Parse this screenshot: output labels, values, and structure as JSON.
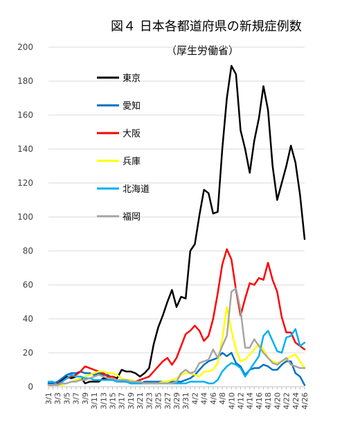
{
  "chart_data": {
    "type": "line",
    "title": "図４ 日本各都道府県の新規症例数",
    "subtitle": "（厚生労働省）",
    "xlabel": "",
    "ylabel": "",
    "ylim": [
      0,
      200
    ],
    "yticks": [
      0,
      20,
      40,
      60,
      80,
      100,
      120,
      140,
      160,
      180,
      200
    ],
    "grid": true,
    "legend_position": "left",
    "x": [
      "3/1",
      "3/2",
      "3/3",
      "3/4",
      "3/5",
      "3/6",
      "3/7",
      "3/8",
      "3/9",
      "3/10",
      "3/11",
      "3/12",
      "3/13",
      "3/14",
      "3/15",
      "3/16",
      "3/17",
      "3/18",
      "3/19",
      "3/20",
      "3/21",
      "3/22",
      "3/23",
      "3/24",
      "3/25",
      "3/26",
      "3/27",
      "3/28",
      "3/29",
      "3/30",
      "3/31",
      "4/1",
      "4/2",
      "4/3",
      "4/4",
      "4/5",
      "4/6",
      "4/7",
      "4/8",
      "4/9",
      "4/10",
      "4/11",
      "4/12",
      "4/13",
      "4/14",
      "4/15",
      "4/16",
      "4/17",
      "4/18",
      "4/19",
      "4/20",
      "4/21",
      "4/22",
      "4/23",
      "4/24",
      "4/25",
      "4/26"
    ],
    "xtick_labels": [
      "3/1",
      "3/3",
      "3/5",
      "3/7",
      "3/9",
      "3/11",
      "3/13",
      "3/15",
      "3/17",
      "3/19",
      "3/21",
      "3/23",
      "3/25",
      "3/27",
      "3/29",
      "3/31",
      "4/2",
      "4/4",
      "4/6",
      "4/8",
      "4/10",
      "4/12",
      "4/14",
      "4/16",
      "4/18",
      "4/20",
      "4/22",
      "4/24",
      "4/26"
    ],
    "series": [
      {
        "name": "東京",
        "color": "#000000",
        "values": [
          1,
          1,
          2,
          4,
          6,
          5,
          6,
          6,
          2,
          3,
          3,
          3,
          5,
          5,
          6,
          5,
          10,
          9,
          9,
          8,
          6,
          8,
          11,
          25,
          35,
          42,
          50,
          57,
          47,
          53,
          52,
          80,
          84,
          101,
          116,
          114,
          102,
          103,
          140,
          170,
          189,
          184,
          151,
          140,
          126,
          145,
          158,
          177,
          163,
          130,
          110,
          120,
          130,
          142,
          132,
          113,
          87
        ]
      },
      {
        "name": "愛知",
        "color": "#0070c0",
        "values": [
          2,
          2,
          3,
          5,
          7,
          8,
          8,
          9,
          8,
          8,
          7,
          8,
          7,
          7,
          5,
          4,
          3,
          3,
          2,
          2,
          2,
          3,
          3,
          3,
          3,
          3,
          3,
          3,
          3,
          3,
          4,
          5,
          7,
          10,
          13,
          15,
          16,
          17,
          20,
          18,
          20,
          14,
          12,
          7,
          10,
          11,
          11,
          13,
          12,
          10,
          10,
          13,
          15,
          15,
          8,
          6,
          1
        ]
      },
      {
        "name": "大阪",
        "color": "#ff0000",
        "values": [
          1,
          1,
          2,
          3,
          5,
          6,
          7,
          9,
          12,
          11,
          10,
          9,
          8,
          6,
          6,
          4,
          4,
          3,
          3,
          3,
          4,
          5,
          6,
          9,
          12,
          15,
          17,
          13,
          17,
          24,
          31,
          33,
          36,
          33,
          27,
          30,
          40,
          55,
          72,
          81,
          75,
          57,
          42,
          52,
          61,
          60,
          64,
          63,
          73,
          63,
          56,
          41,
          32,
          32,
          26,
          24,
          22
        ]
      },
      {
        "name": "兵庫",
        "color": "#ffff00",
        "values": [
          1,
          1,
          1,
          1,
          2,
          3,
          4,
          5,
          6,
          7,
          8,
          9,
          9,
          8,
          8,
          7,
          5,
          4,
          4,
          3,
          3,
          2,
          2,
          2,
          2,
          3,
          3,
          4,
          5,
          7,
          8,
          8,
          7,
          6,
          9,
          9,
          10,
          14,
          28,
          47,
          33,
          22,
          15,
          16,
          19,
          22,
          25,
          22,
          17,
          15,
          14,
          15,
          16,
          18,
          19,
          15,
          11
        ]
      },
      {
        "name": "北海道",
        "color": "#00b0f0",
        "values": [
          3,
          3,
          1,
          3,
          5,
          7,
          6,
          6,
          5,
          5,
          4,
          4,
          4,
          4,
          4,
          3,
          3,
          3,
          2,
          2,
          2,
          2,
          2,
          2,
          2,
          2,
          2,
          2,
          2,
          2,
          2,
          3,
          3,
          3,
          3,
          2,
          2,
          4,
          9,
          12,
          14,
          13,
          11,
          6,
          10,
          14,
          18,
          30,
          33,
          27,
          21,
          20,
          29,
          30,
          34,
          24,
          26
        ]
      },
      {
        "name": "福岡",
        "color": "#a5a5a5",
        "values": [
          1,
          1,
          1,
          2,
          2,
          3,
          3,
          4,
          4,
          5,
          6,
          7,
          6,
          5,
          5,
          4,
          4,
          4,
          3,
          3,
          3,
          2,
          2,
          2,
          2,
          2,
          2,
          2,
          3,
          8,
          10,
          8,
          9,
          14,
          15,
          16,
          22,
          17,
          24,
          30,
          56,
          58,
          45,
          23,
          23,
          28,
          24,
          20,
          17,
          14,
          13,
          15,
          17,
          13,
          12,
          11,
          11
        ]
      }
    ]
  }
}
